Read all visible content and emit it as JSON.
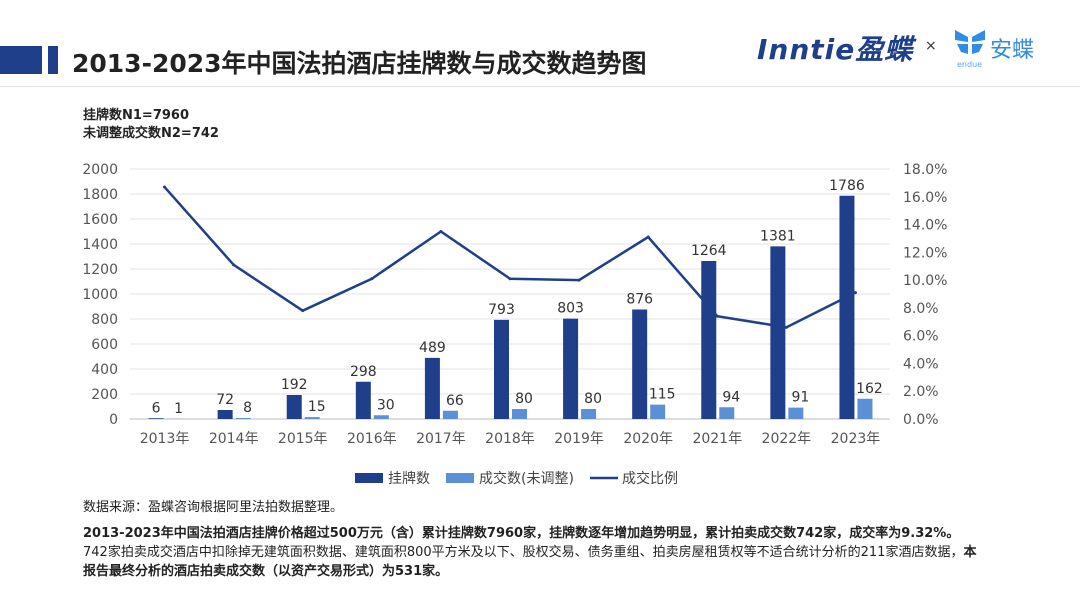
{
  "header": {
    "title": "2013-2023年中国法拍酒店挂牌数与成交数趋势图",
    "logo_inntie": "Inntie盈蝶",
    "times": "×",
    "logo_andie": "安蝶",
    "logo_andie_sub": "endue"
  },
  "notes": {
    "n1": "挂牌数N1=7960",
    "n2": "未调整成交数N2=742"
  },
  "chart_data": {
    "type": "bar+line",
    "categories": [
      "2013年",
      "2014年",
      "2015年",
      "2016年",
      "2017年",
      "2018年",
      "2019年",
      "2020年",
      "2021年",
      "2022年",
      "2023年"
    ],
    "series": [
      {
        "name": "挂牌数",
        "type": "bar",
        "axis": "left",
        "color": "#1f3f8a",
        "values": [
          6,
          72,
          192,
          298,
          489,
          793,
          803,
          876,
          1264,
          1381,
          1786
        ]
      },
      {
        "name": "成交数(未调整)",
        "type": "bar",
        "axis": "left",
        "color": "#5b8fd6",
        "values": [
          1,
          8,
          15,
          30,
          66,
          80,
          80,
          115,
          94,
          91,
          162
        ]
      },
      {
        "name": "成交比例",
        "type": "line",
        "axis": "right",
        "color": "#1f3f8a",
        "values": [
          16.7,
          11.1,
          7.8,
          10.1,
          13.5,
          10.1,
          10.0,
          13.1,
          7.4,
          6.6,
          9.1
        ]
      }
    ],
    "ylim": [
      0,
      2000
    ],
    "yticks": [
      "0",
      "200",
      "400",
      "600",
      "800",
      "1000",
      "1200",
      "1400",
      "1600",
      "1800",
      "2000"
    ],
    "y2lim": [
      0,
      18
    ],
    "y2ticks": [
      "0.0%",
      "2.0%",
      "4.0%",
      "6.0%",
      "8.0%",
      "10.0%",
      "12.0%",
      "14.0%",
      "16.0%",
      "18.0%"
    ],
    "grid": true,
    "legend": "bottom"
  },
  "footer": {
    "source": "数据来源：盈蝶咨询根据阿里法拍数据整理。",
    "desc_bold1": "2013-2023年中国法拍酒店挂牌价格超过500万元（含）累计挂牌数7960家，挂牌数逐年增加趋势明显，累计拍卖成交数742家，成交率为9.32%。",
    "desc_normal": "742家拍卖成交酒店中扣除掉无建筑面积数据、建筑面积800平方米及以下、股权交易、债务重组、拍卖房屋租赁权等不适合统计分析的211家酒店数据，",
    "desc_bold2": "本报告最终分析的酒店拍卖成交数（以资产交易形式）为531家。"
  }
}
